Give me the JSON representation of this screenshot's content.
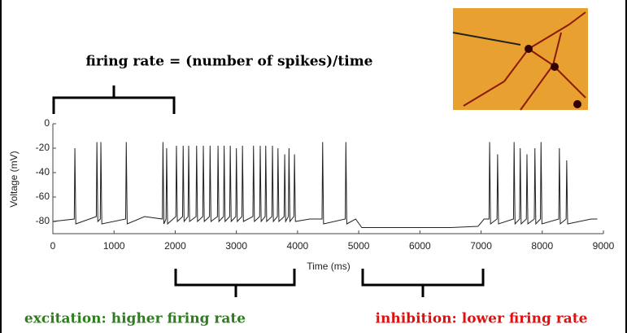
{
  "chart_data": {
    "type": "line",
    "title": "firing rate = (number of spikes)/time",
    "x_label": "Time (ms)",
    "y_label": "Voltage (mV)",
    "annotations": [
      "excitation: higher firing rate",
      "inhibition: lower firing rate"
    ],
    "xlim": [
      0,
      9000
    ],
    "xticks": [
      0,
      1000,
      2000,
      3000,
      4000,
      5000,
      6000,
      7000,
      8000,
      9000
    ],
    "ylim": [
      -90,
      0
    ],
    "yticks": [
      0,
      -20,
      -40,
      -60,
      -80
    ],
    "series": [
      {
        "color": "#222222",
        "x": [
          0,
          350,
          360,
          375,
          710,
          720,
          735,
          775,
          785,
          800,
          1190,
          1200,
          1215,
          1500,
          1790,
          1800,
          1815,
          1850,
          1860,
          1875,
          2010,
          2020,
          2035,
          2120,
          2130,
          2145,
          2210,
          2220,
          2235,
          2340,
          2350,
          2365,
          2450,
          2460,
          2475,
          2560,
          2570,
          2585,
          2690,
          2700,
          2715,
          2790,
          2800,
          2815,
          2890,
          2900,
          2915,
          2990,
          3000,
          3015,
          3090,
          3100,
          3115,
          3270,
          3280,
          3295,
          3380,
          3390,
          3405,
          3470,
          3480,
          3495,
          3580,
          3590,
          3605,
          3670,
          3680,
          3695,
          3780,
          3790,
          3805,
          3850,
          3860,
          3875,
          3940,
          3950,
          3965,
          4200,
          4400,
          4410,
          4425,
          4780,
          4790,
          4805,
          4950,
          5050,
          6000,
          6500,
          6950,
          7050,
          7130,
          7140,
          7155,
          7260,
          7270,
          7285,
          7530,
          7540,
          7555,
          7630,
          7640,
          7655,
          7740,
          7750,
          7765,
          7870,
          7880,
          7895,
          7970,
          7980,
          7995,
          8270,
          8280,
          8295,
          8390,
          8400,
          8415,
          8800,
          8900
        ],
        "values": [
          -80,
          -78,
          -20,
          -82,
          -76,
          -15,
          -80,
          -78,
          -15,
          -82,
          -78,
          -15,
          -82,
          -76,
          -78,
          -15,
          -82,
          -78,
          -20,
          -82,
          -76,
          -18,
          -80,
          -76,
          -18,
          -80,
          -76,
          -18,
          -80,
          -76,
          -18,
          -80,
          -76,
          -18,
          -80,
          -76,
          -18,
          -80,
          -76,
          -18,
          -80,
          -76,
          -18,
          -80,
          -76,
          -18,
          -80,
          -76,
          -20,
          -80,
          -76,
          -18,
          -80,
          -76,
          -18,
          -80,
          -76,
          -18,
          -80,
          -76,
          -18,
          -80,
          -76,
          -18,
          -80,
          -76,
          -20,
          -80,
          -76,
          -25,
          -80,
          -76,
          -20,
          -80,
          -76,
          -25,
          -80,
          -78,
          -78,
          -15,
          -82,
          -78,
          -15,
          -82,
          -78,
          -85,
          -85,
          -85,
          -84,
          -78,
          -78,
          -15,
          -82,
          -78,
          -25,
          -82,
          -78,
          -15,
          -82,
          -78,
          -20,
          -82,
          -78,
          -25,
          -82,
          -78,
          -20,
          -82,
          -78,
          -15,
          -82,
          -78,
          -20,
          -82,
          -78,
          -30,
          -82,
          -78,
          -78
        ]
      }
    ]
  }
}
